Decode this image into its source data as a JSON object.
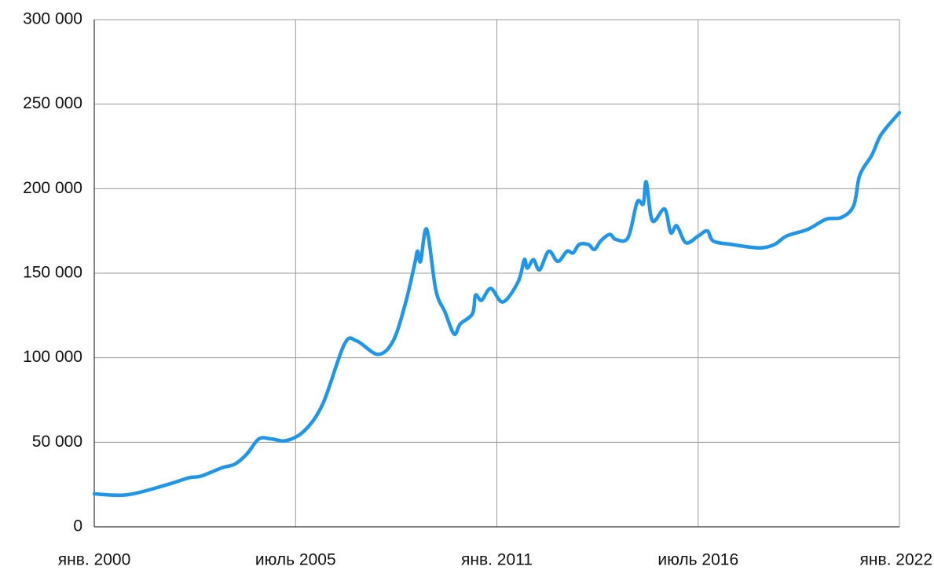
{
  "chart_data": {
    "type": "line",
    "x": [
      "2000-01",
      "2000-12",
      "2002-01",
      "2002-08",
      "2002-12",
      "2003-07",
      "2003-11",
      "2004-03",
      "2004-07",
      "2004-11",
      "2005-04",
      "2005-10",
      "2006-04",
      "2006-11",
      "2007-03",
      "2007-10",
      "2008-03",
      "2008-07",
      "2008-10",
      "2008-11",
      "2008-12",
      "2009-02",
      "2009-05",
      "2009-08",
      "2009-11",
      "2010-01",
      "2010-05",
      "2010-06",
      "2010-08",
      "2010-11",
      "2011-03",
      "2011-08",
      "2011-10",
      "2011-11",
      "2012-01",
      "2012-03",
      "2012-06",
      "2012-09",
      "2012-12",
      "2013-02",
      "2013-04",
      "2013-07",
      "2013-09",
      "2013-11",
      "2014-02",
      "2014-04",
      "2014-08",
      "2014-11",
      "2015-01",
      "2015-02",
      "2015-04",
      "2015-08",
      "2015-10",
      "2015-12",
      "2016-03",
      "2016-07",
      "2016-10",
      "2016-12",
      "2017-06",
      "2018-03",
      "2018-08",
      "2018-12",
      "2019-07",
      "2020-01",
      "2020-06",
      "2020-10",
      "2020-12",
      "2021-04",
      "2021-07",
      "2022-01"
    ],
    "series": [
      {
        "color": "#2196e8",
        "values": [
          19500,
          19000,
          25000,
          29000,
          30000,
          35000,
          37000,
          43000,
          52000,
          52000,
          51000,
          57000,
          73000,
          108000,
          110000,
          102000,
          110000,
          132000,
          155000,
          163000,
          157000,
          176000,
          140000,
          127000,
          114000,
          120000,
          126000,
          137000,
          134000,
          141000,
          133000,
          145000,
          158000,
          153000,
          158000,
          152000,
          163000,
          157000,
          163000,
          162000,
          167000,
          167000,
          164000,
          169000,
          173000,
          170000,
          171000,
          192000,
          191000,
          204000,
          181000,
          188000,
          174000,
          178000,
          168000,
          172000,
          175000,
          169000,
          167000,
          165000,
          167000,
          172000,
          176000,
          182000,
          183000,
          190000,
          208000,
          220000,
          232000,
          245000
        ]
      }
    ],
    "xlim": [
      "2000-01",
      "2022-01"
    ],
    "xticks": [
      {
        "value": "2000-01",
        "label": "янв. 2000"
      },
      {
        "value": "2005-07",
        "label": "июль 2005"
      },
      {
        "value": "2011-01",
        "label": "янв. 2011"
      },
      {
        "value": "2016-07",
        "label": "июль 2016"
      },
      {
        "value": "2022-01",
        "label": "янв. 2022"
      }
    ],
    "ylim": [
      0,
      300000
    ],
    "yticks": [
      0,
      {
        "value": 50000,
        "label": "50 000"
      },
      {
        "value": 100000,
        "label": "100 000"
      },
      {
        "value": 150000,
        "label": "150 000"
      },
      {
        "value": 200000,
        "label": "200 000"
      },
      {
        "value": 250000,
        "label": "250 000"
      },
      {
        "value": 300000,
        "label": "300 000"
      }
    ],
    "grid": true
  }
}
